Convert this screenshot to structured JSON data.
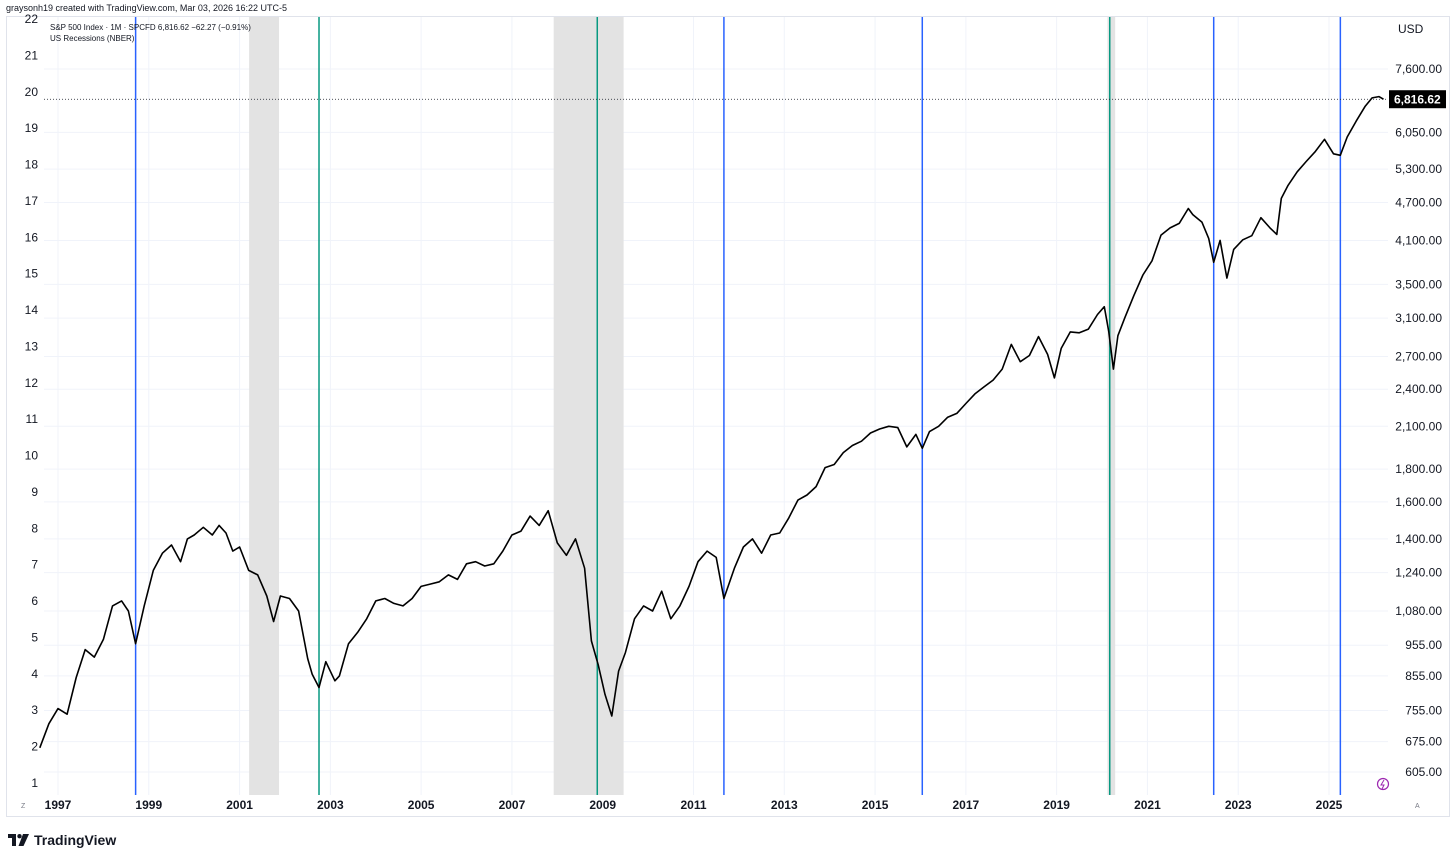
{
  "header": {
    "credit": "graysonh19 created with TradingView.com, Mar 03, 2026 16:22 UTC-5"
  },
  "legend": {
    "series_line": "S&P 500 Index · 1M · SPCFD  6,816.62  −62.27 (−0.91%)",
    "overlay_line": "US Recessions (NBER)"
  },
  "footer": {
    "brand": "TradingView"
  },
  "colors": {
    "price_line": "#000000",
    "recession_band": "#e3e3e3",
    "blue_marker": "#2962ff",
    "green_marker": "#089981",
    "last_price_bg": "#000000",
    "grid": "#f0f3fa"
  },
  "icons": [
    "tradingview-logo-icon",
    "replay-icon"
  ],
  "chart_data": {
    "type": "line",
    "series": [
      {
        "name": "S&P 500 Index · 1M · SPCFD",
        "last": 6816.62,
        "change": -62.27,
        "change_pct": -0.91
      }
    ],
    "currency": "USD",
    "y_scale": "log",
    "x_tick_labels": [
      "1997",
      "1999",
      "2001",
      "2003",
      "2005",
      "2007",
      "2009",
      "2011",
      "2013",
      "2015",
      "2017",
      "2019",
      "2021",
      "2023",
      "2025"
    ],
    "y_right_tick_labels": [
      "7,600.00",
      "6,050.00",
      "5,300.00",
      "4,700.00",
      "4,100.00",
      "3,500.00",
      "3,100.00",
      "2,700.00",
      "2,400.00",
      "2,100.00",
      "1,800.00",
      "1,600.00",
      "1,400.00",
      "1,240.00",
      "1,080.00",
      "955.00",
      "855.00",
      "755.00",
      "675.00",
      "605.00"
    ],
    "y_right_tick_values": [
      7600,
      6050,
      5300,
      4700,
      4100,
      3500,
      3100,
      2700,
      2400,
      2100,
      1800,
      1600,
      1400,
      1240,
      1080,
      955,
      855,
      755,
      675,
      605
    ],
    "y_left_tick_labels": [
      "22",
      "21",
      "20",
      "19",
      "18",
      "17",
      "16",
      "15",
      "14",
      "13",
      "12",
      "11",
      "10",
      "9",
      "8",
      "7",
      "6",
      "5",
      "4",
      "3",
      "2",
      "1"
    ],
    "last_price_label": "6,816.62",
    "axis_corner_labels": {
      "bottom_left": "Z",
      "bottom_right": "A"
    },
    "recessions": [
      {
        "start": 2001.21,
        "end": 2001.87
      },
      {
        "start": 2007.92,
        "end": 2009.46
      },
      {
        "start": 2020.12,
        "end": 2020.29
      }
    ],
    "vertical_markers": [
      {
        "x": 1998.71,
        "color": "blue"
      },
      {
        "x": 2002.75,
        "color": "green"
      },
      {
        "x": 2008.88,
        "color": "green"
      },
      {
        "x": 2011.67,
        "color": "blue"
      },
      {
        "x": 2016.04,
        "color": "blue"
      },
      {
        "x": 2020.17,
        "color": "green"
      },
      {
        "x": 2022.46,
        "color": "blue"
      },
      {
        "x": 2025.25,
        "color": "blue"
      }
    ],
    "points": [
      [
        1996.6,
        660
      ],
      [
        1996.8,
        720
      ],
      [
        1997.0,
        760
      ],
      [
        1997.2,
        745
      ],
      [
        1997.4,
        850
      ],
      [
        1997.6,
        940
      ],
      [
        1997.8,
        915
      ],
      [
        1998.0,
        975
      ],
      [
        1998.2,
        1100
      ],
      [
        1998.4,
        1120
      ],
      [
        1998.55,
        1080
      ],
      [
        1998.71,
        960
      ],
      [
        1998.9,
        1100
      ],
      [
        1999.1,
        1250
      ],
      [
        1999.3,
        1330
      ],
      [
        1999.5,
        1370
      ],
      [
        1999.7,
        1290
      ],
      [
        1999.85,
        1400
      ],
      [
        2000.0,
        1420
      ],
      [
        2000.2,
        1460
      ],
      [
        2000.4,
        1420
      ],
      [
        2000.55,
        1470
      ],
      [
        2000.7,
        1430
      ],
      [
        2000.85,
        1340
      ],
      [
        2001.0,
        1360
      ],
      [
        2001.2,
        1250
      ],
      [
        2001.4,
        1230
      ],
      [
        2001.6,
        1140
      ],
      [
        2001.75,
        1040
      ],
      [
        2001.9,
        1140
      ],
      [
        2002.1,
        1130
      ],
      [
        2002.3,
        1080
      ],
      [
        2002.5,
        910
      ],
      [
        2002.6,
        860
      ],
      [
        2002.75,
        820
      ],
      [
        2002.9,
        900
      ],
      [
        2003.1,
        840
      ],
      [
        2003.2,
        855
      ],
      [
        2003.4,
        960
      ],
      [
        2003.6,
        1000
      ],
      [
        2003.8,
        1050
      ],
      [
        2004.0,
        1120
      ],
      [
        2004.2,
        1130
      ],
      [
        2004.4,
        1110
      ],
      [
        2004.6,
        1100
      ],
      [
        2004.8,
        1130
      ],
      [
        2005.0,
        1180
      ],
      [
        2005.2,
        1190
      ],
      [
        2005.4,
        1200
      ],
      [
        2005.6,
        1230
      ],
      [
        2005.8,
        1210
      ],
      [
        2006.0,
        1280
      ],
      [
        2006.2,
        1290
      ],
      [
        2006.4,
        1270
      ],
      [
        2006.6,
        1280
      ],
      [
        2006.8,
        1340
      ],
      [
        2007.0,
        1420
      ],
      [
        2007.2,
        1440
      ],
      [
        2007.4,
        1520
      ],
      [
        2007.6,
        1470
      ],
      [
        2007.8,
        1550
      ],
      [
        2008.0,
        1380
      ],
      [
        2008.2,
        1320
      ],
      [
        2008.4,
        1400
      ],
      [
        2008.6,
        1260
      ],
      [
        2008.75,
        970
      ],
      [
        2008.9,
        890
      ],
      [
        2009.05,
        800
      ],
      [
        2009.2,
        740
      ],
      [
        2009.35,
        870
      ],
      [
        2009.5,
        930
      ],
      [
        2009.7,
        1050
      ],
      [
        2009.9,
        1100
      ],
      [
        2010.1,
        1080
      ],
      [
        2010.3,
        1160
      ],
      [
        2010.5,
        1050
      ],
      [
        2010.7,
        1100
      ],
      [
        2010.9,
        1180
      ],
      [
        2011.1,
        1290
      ],
      [
        2011.3,
        1340
      ],
      [
        2011.5,
        1310
      ],
      [
        2011.67,
        1130
      ],
      [
        2011.9,
        1260
      ],
      [
        2012.1,
        1360
      ],
      [
        2012.3,
        1400
      ],
      [
        2012.5,
        1330
      ],
      [
        2012.7,
        1420
      ],
      [
        2012.9,
        1430
      ],
      [
        2013.1,
        1510
      ],
      [
        2013.3,
        1610
      ],
      [
        2013.5,
        1640
      ],
      [
        2013.7,
        1690
      ],
      [
        2013.9,
        1810
      ],
      [
        2014.1,
        1830
      ],
      [
        2014.3,
        1910
      ],
      [
        2014.5,
        1960
      ],
      [
        2014.7,
        1990
      ],
      [
        2014.9,
        2050
      ],
      [
        2015.1,
        2080
      ],
      [
        2015.3,
        2100
      ],
      [
        2015.5,
        2090
      ],
      [
        2015.7,
        1950
      ],
      [
        2015.9,
        2040
      ],
      [
        2016.04,
        1940
      ],
      [
        2016.2,
        2060
      ],
      [
        2016.4,
        2100
      ],
      [
        2016.6,
        2170
      ],
      [
        2016.8,
        2200
      ],
      [
        2017.0,
        2280
      ],
      [
        2017.2,
        2360
      ],
      [
        2017.4,
        2420
      ],
      [
        2017.6,
        2480
      ],
      [
        2017.8,
        2580
      ],
      [
        2018.0,
        2820
      ],
      [
        2018.2,
        2650
      ],
      [
        2018.4,
        2710
      ],
      [
        2018.6,
        2900
      ],
      [
        2018.8,
        2720
      ],
      [
        2018.95,
        2500
      ],
      [
        2019.1,
        2780
      ],
      [
        2019.3,
        2950
      ],
      [
        2019.5,
        2940
      ],
      [
        2019.7,
        2980
      ],
      [
        2019.9,
        3140
      ],
      [
        2020.05,
        3230
      ],
      [
        2020.15,
        2950
      ],
      [
        2020.25,
        2580
      ],
      [
        2020.35,
        2910
      ],
      [
        2020.5,
        3100
      ],
      [
        2020.7,
        3360
      ],
      [
        2020.9,
        3620
      ],
      [
        2021.1,
        3810
      ],
      [
        2021.3,
        4180
      ],
      [
        2021.5,
        4290
      ],
      [
        2021.7,
        4360
      ],
      [
        2021.9,
        4600
      ],
      [
        2022.0,
        4500
      ],
      [
        2022.2,
        4380
      ],
      [
        2022.35,
        4130
      ],
      [
        2022.46,
        3790
      ],
      [
        2022.6,
        4100
      ],
      [
        2022.75,
        3580
      ],
      [
        2022.9,
        3970
      ],
      [
        2023.1,
        4110
      ],
      [
        2023.3,
        4170
      ],
      [
        2023.5,
        4450
      ],
      [
        2023.7,
        4290
      ],
      [
        2023.85,
        4190
      ],
      [
        2023.95,
        4770
      ],
      [
        2024.1,
        5000
      ],
      [
        2024.3,
        5250
      ],
      [
        2024.5,
        5450
      ],
      [
        2024.7,
        5650
      ],
      [
        2024.9,
        5900
      ],
      [
        2025.1,
        5600
      ],
      [
        2025.25,
        5570
      ],
      [
        2025.4,
        5950
      ],
      [
        2025.6,
        6300
      ],
      [
        2025.8,
        6650
      ],
      [
        2025.95,
        6850
      ],
      [
        2026.1,
        6880
      ],
      [
        2026.2,
        6816.62
      ]
    ]
  }
}
